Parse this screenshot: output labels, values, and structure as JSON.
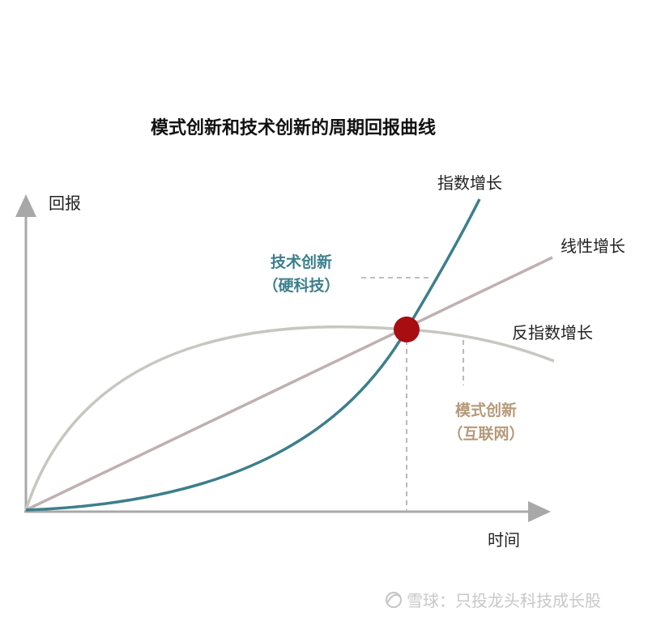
{
  "title": "模式创新和技术创新的周期回报曲线",
  "axes": {
    "y_label": "回报",
    "x_label": "时间"
  },
  "curves": [
    {
      "name": "指数增长",
      "color": "#3d7f8c"
    },
    {
      "name": "线性增长",
      "color": "#c0b0b0"
    },
    {
      "name": "反指数增长",
      "color": "#c8c6c0"
    }
  ],
  "annotations": {
    "tech": {
      "line1": "技术创新",
      "line2": "（硬科技）",
      "color": "#3d7f8c"
    },
    "model": {
      "line1": "模式创新",
      "line2": "（互联网）",
      "color": "#b59a78"
    }
  },
  "intersection_color": "#a80d12",
  "axis_color": "#a8a8a8",
  "watermark": "雪球：只投龙头科技成长股"
}
